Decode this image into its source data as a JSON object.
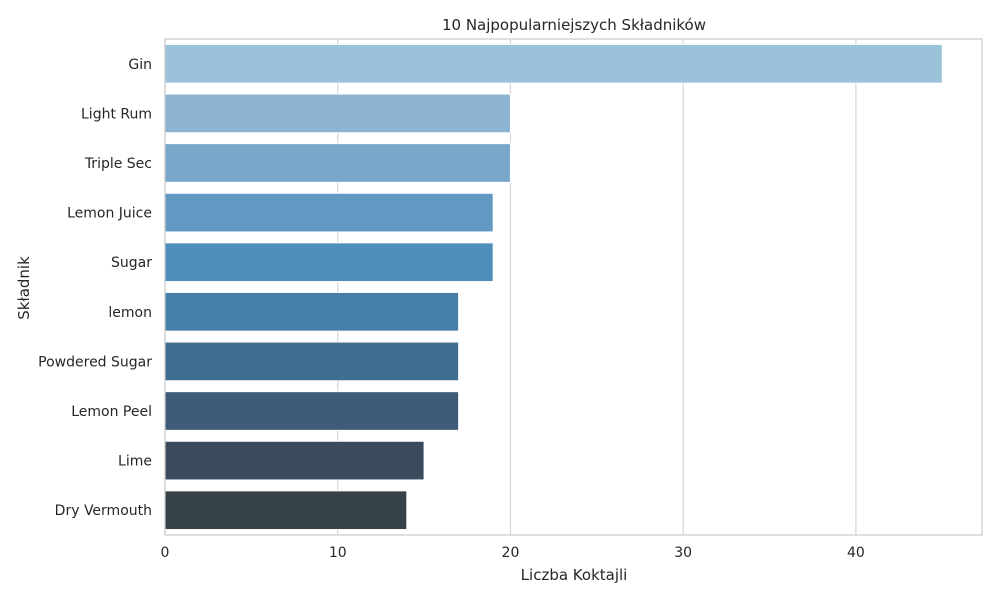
{
  "chart_data": {
    "type": "bar",
    "orientation": "horizontal",
    "title": "10 Najpopularniejszych Składników",
    "xlabel": "Liczba Koktajli",
    "ylabel": "Składnik",
    "categories": [
      "Gin",
      "Light Rum",
      "Triple Sec",
      "Lemon Juice",
      "Sugar",
      "lemon",
      "Powdered Sugar",
      "Lemon Peel",
      "Lime",
      "Dry Vermouth"
    ],
    "values": [
      45,
      20,
      20,
      19,
      19,
      17,
      17,
      17,
      15,
      14
    ],
    "xlim": [
      0,
      47.3
    ],
    "xticks": [
      "0",
      "10",
      "20",
      "30",
      "40"
    ],
    "grid": true,
    "colors": [
      "#9ac3da",
      "#8cb3cf",
      "#78a7ca",
      "#6299c3",
      "#4f8dbb",
      "#447ea9",
      "#3f6d8f",
      "#3e5c77",
      "#394b5d",
      "#374248"
    ]
  }
}
